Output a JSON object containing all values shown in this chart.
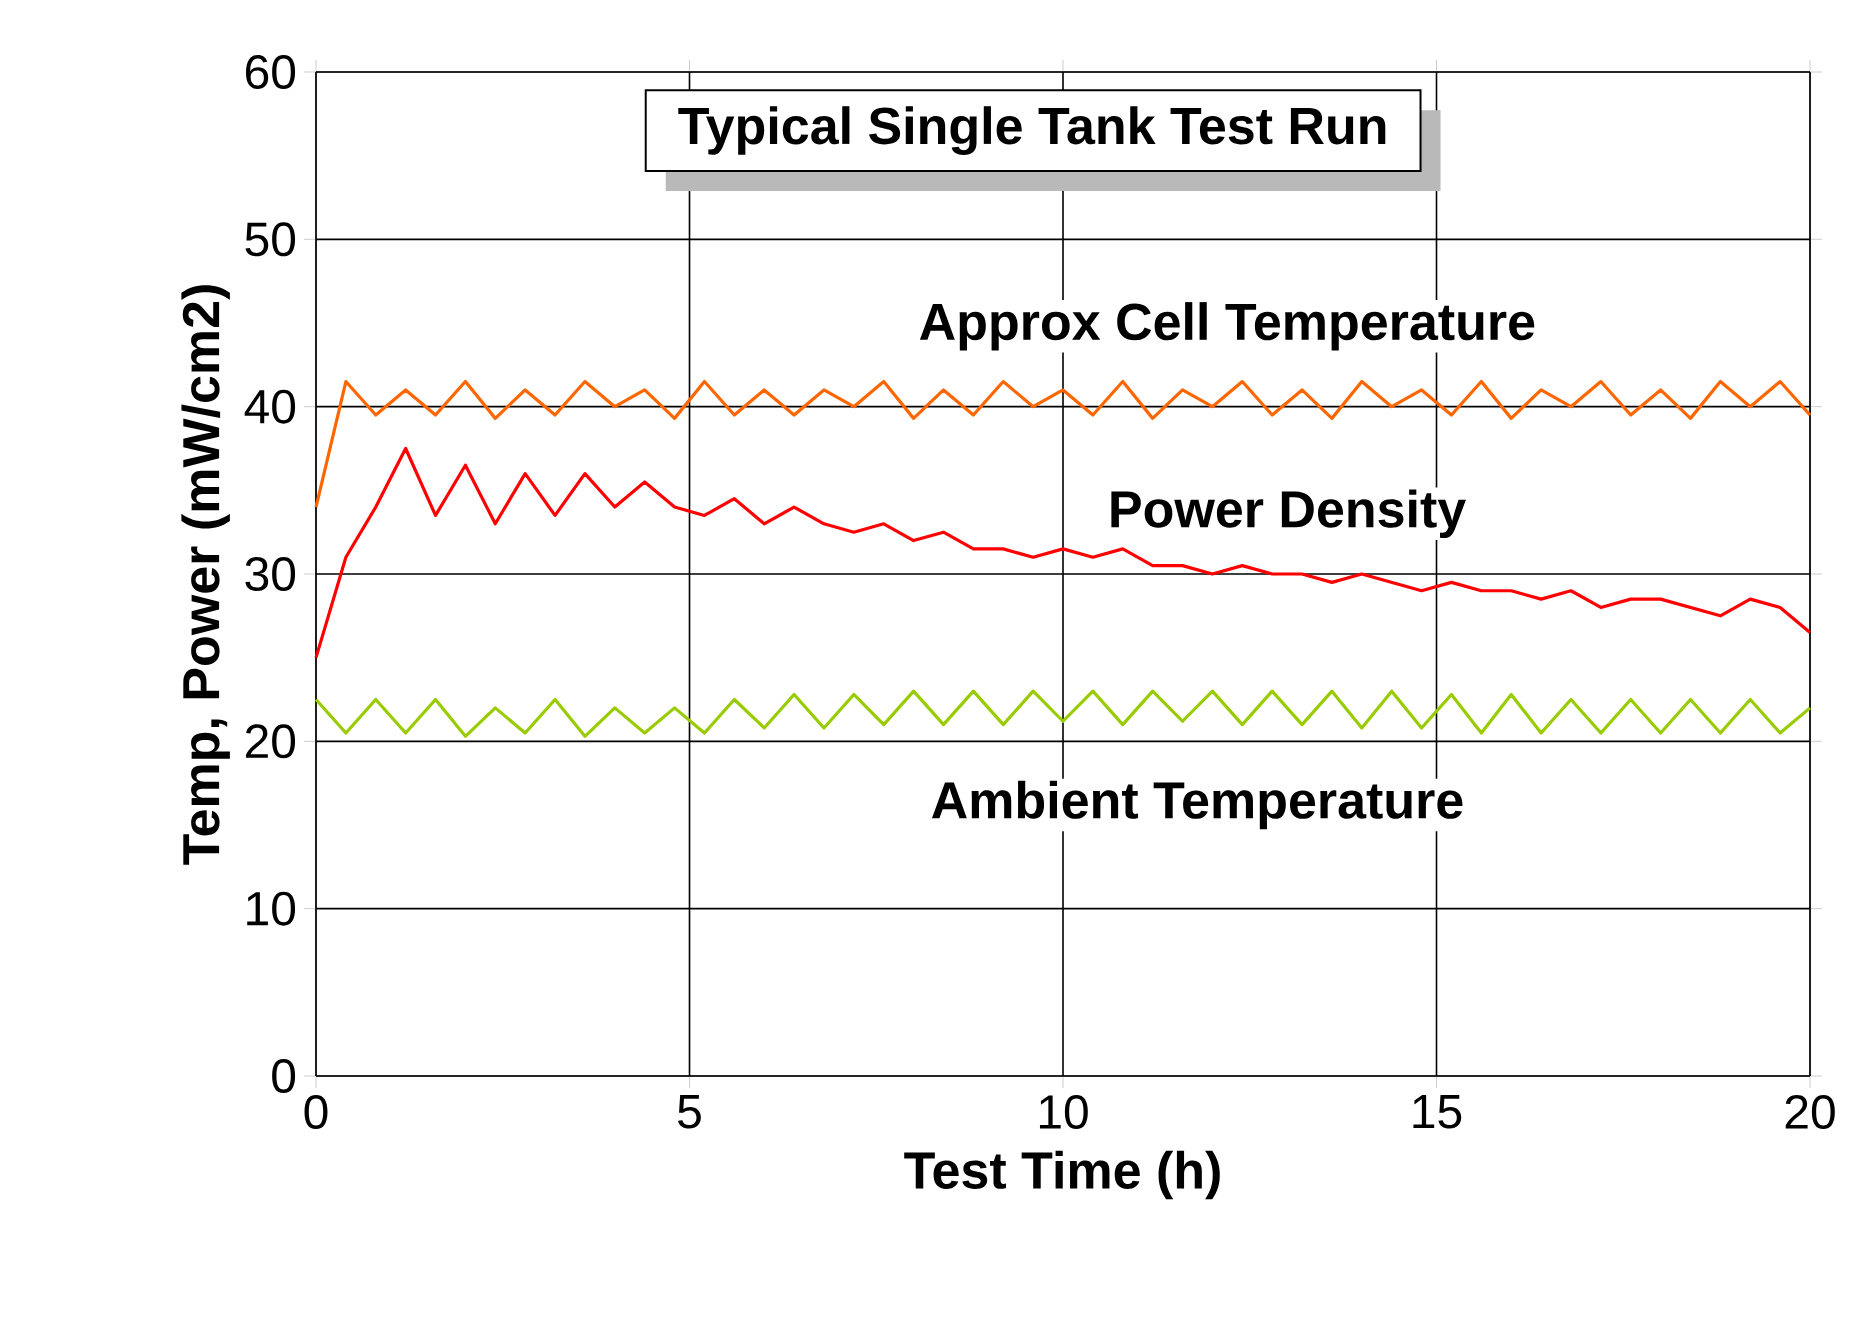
{
  "chart_data": {
    "type": "line",
    "title": "Typical Single Tank Test Run",
    "xlabel": "Test Time (h)",
    "ylabel": "Temp, Power (mW/cm2)",
    "x": [
      0,
      0.4,
      0.8,
      1.2,
      1.6,
      2.0,
      2.4,
      2.8,
      3.2,
      3.6,
      4.0,
      4.4,
      4.8,
      5.2,
      5.6,
      6.0,
      6.4,
      6.8,
      7.2,
      7.6,
      8.0,
      8.4,
      8.8,
      9.2,
      9.6,
      10.0,
      10.4,
      10.8,
      11.2,
      11.6,
      12.0,
      12.4,
      12.8,
      13.2,
      13.6,
      14.0,
      14.4,
      14.8,
      15.2,
      15.6,
      16.0,
      16.4,
      16.8,
      17.2,
      17.6,
      18.0,
      18.4,
      18.8,
      19.2,
      19.6,
      20.0
    ],
    "series": [
      {
        "name": "Approx Cell Temperature",
        "color": "#ff6600",
        "values": [
          34,
          41.5,
          39.5,
          41,
          39.5,
          41.5,
          39.3,
          41,
          39.5,
          41.5,
          40,
          41,
          39.3,
          41.5,
          39.5,
          41,
          39.5,
          41,
          40,
          41.5,
          39.3,
          41,
          39.5,
          41.5,
          40,
          41,
          39.5,
          41.5,
          39.3,
          41,
          40,
          41.5,
          39.5,
          41,
          39.3,
          41.5,
          40,
          41,
          39.5,
          41.5,
          39.3,
          41,
          40,
          41.5,
          39.5,
          41,
          39.3,
          41.5,
          40,
          41.5,
          39.5
        ]
      },
      {
        "name": "Power Density",
        "color": "#ff0000",
        "values": [
          25,
          31,
          34,
          37.5,
          33.5,
          36.5,
          33,
          36,
          33.5,
          36,
          34,
          35.5,
          34,
          33.5,
          34.5,
          33,
          34,
          33,
          32.5,
          33,
          32,
          32.5,
          31.5,
          31.5,
          31,
          31.5,
          31,
          31.5,
          30.5,
          30.5,
          30,
          30.5,
          30,
          30,
          29.5,
          30,
          29.5,
          29,
          29.5,
          29,
          29,
          28.5,
          29,
          28,
          28.5,
          28.5,
          28,
          27.5,
          28.5,
          28,
          26.5
        ]
      },
      {
        "name": "Ambient Temperature",
        "color": "#99cc00",
        "values": [
          22.5,
          20.5,
          22.5,
          20.5,
          22.5,
          20.3,
          22,
          20.5,
          22.5,
          20.3,
          22,
          20.5,
          22,
          20.5,
          22.5,
          20.8,
          22.8,
          20.8,
          22.8,
          21,
          23,
          21,
          23,
          21,
          23,
          21.2,
          23,
          21,
          23,
          21.2,
          23,
          21,
          23,
          21,
          23,
          20.8,
          23,
          20.8,
          22.8,
          20.5,
          22.8,
          20.5,
          22.5,
          20.5,
          22.5,
          20.5,
          22.5,
          20.5,
          22.5,
          20.5,
          22
        ]
      }
    ],
    "xlim": [
      0,
      20
    ],
    "ylim": [
      0,
      60
    ],
    "xticks": [
      0,
      5,
      10,
      15,
      20
    ],
    "yticks": [
      0,
      10,
      20,
      30,
      40,
      50,
      60
    ],
    "grid": true
  }
}
